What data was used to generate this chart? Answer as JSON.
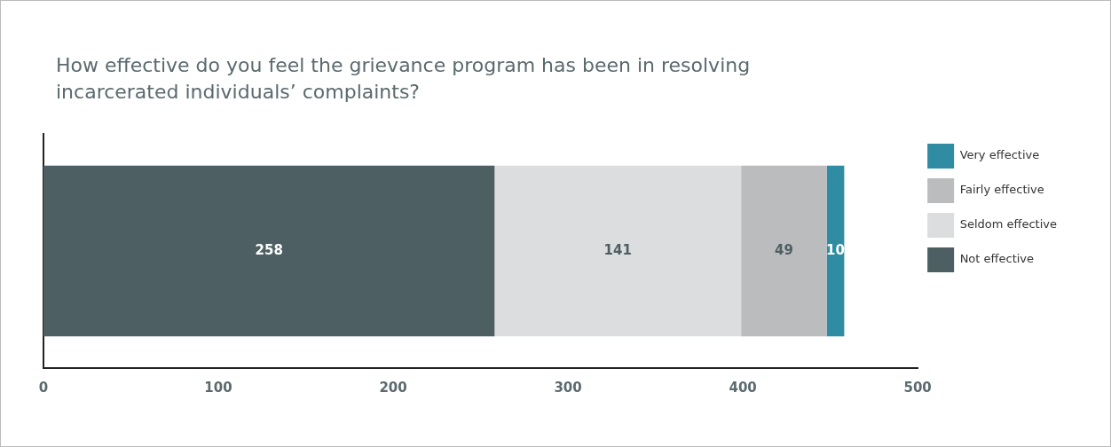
{
  "chart_data": {
    "type": "bar",
    "title": "How effective do you feel the grievance program has been in resolving incarcerated individuals’ complaints?",
    "orientation": "horizontal",
    "stacked": true,
    "categories": [
      null
    ],
    "series": [
      {
        "name": "Not effective",
        "color": "#4d5f63",
        "values": [
          258
        ]
      },
      {
        "name": "Seldom effective",
        "color": "#dcdddf",
        "values": [
          141
        ]
      },
      {
        "name": "Fairly effective",
        "color": "#bbbcbe",
        "values": [
          49
        ]
      },
      {
        "name": "Very effective",
        "color": "#2f8ca3",
        "values": [
          10
        ]
      }
    ],
    "xlim": [
      0,
      500
    ],
    "xticks": [
      0,
      100,
      200,
      300,
      400,
      500
    ],
    "legend": "right",
    "data_labels": true
  }
}
